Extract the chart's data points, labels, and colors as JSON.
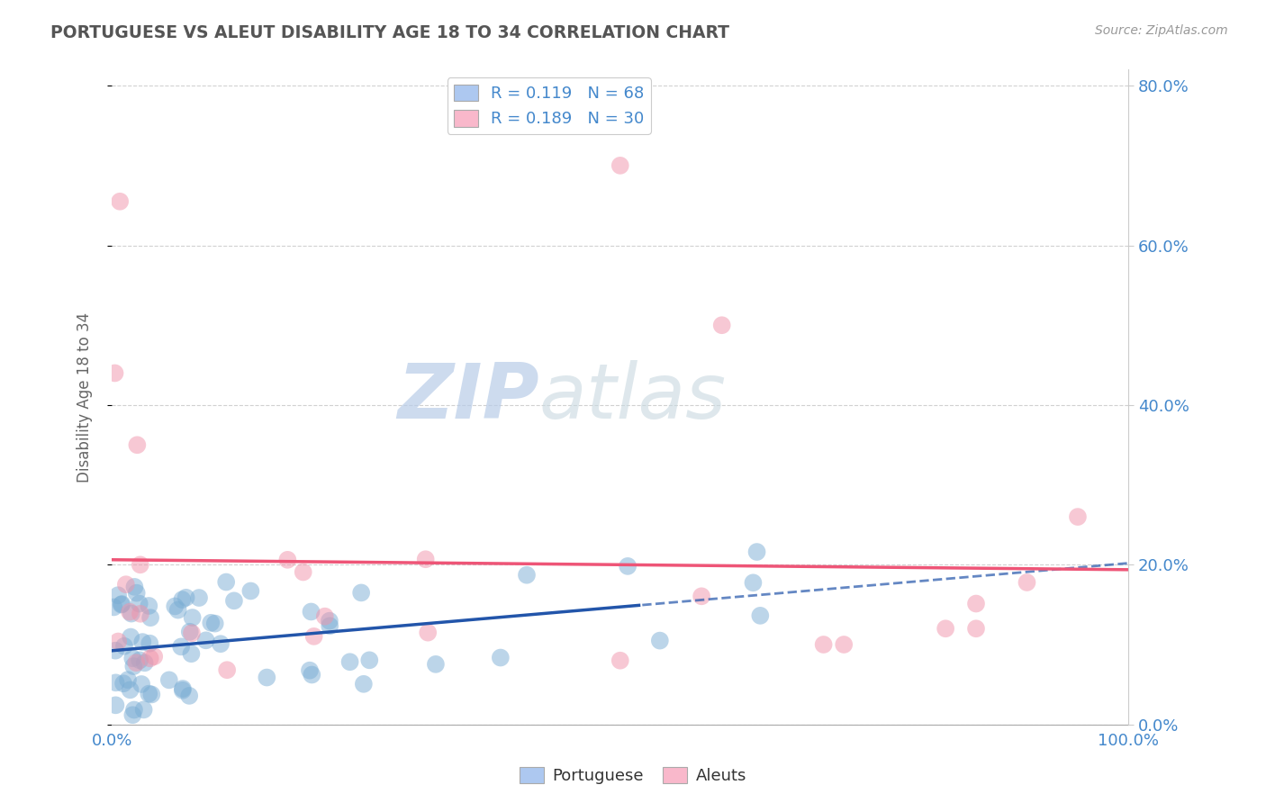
{
  "title": "PORTUGUESE VS ALEUT DISABILITY AGE 18 TO 34 CORRELATION CHART",
  "source_text": "Source: ZipAtlas.com",
  "ylabel": "Disability Age 18 to 34",
  "legend_entries": [
    {
      "label": "R = 0.119   N = 68",
      "color": "#adc8f0"
    },
    {
      "label": "R = 0.189   N = 30",
      "color": "#f9b8cb"
    }
  ],
  "legend_labels_bottom": [
    "Portuguese",
    "Aleuts"
  ],
  "portuguese_color": "#7aadd4",
  "aleut_color": "#f093aa",
  "portuguese_line_color": "#2255aa",
  "aleut_line_color": "#ee5577",
  "grid_color": "#cccccc",
  "background_color": "#ffffff",
  "title_color": "#555555",
  "axis_color": "#4488cc",
  "watermark_zip_color": "#b8cce8",
  "watermark_atlas_color": "#c8d8e0",
  "ylim": [
    0.0,
    0.82
  ],
  "yticks": [
    0.0,
    0.2,
    0.4,
    0.6,
    0.8
  ],
  "ytick_labels": [
    "0.0%",
    "20.0%",
    "40.0%",
    "60.0%",
    "80.0%"
  ],
  "xtick_labels": [
    "0.0%",
    "100.0%"
  ]
}
